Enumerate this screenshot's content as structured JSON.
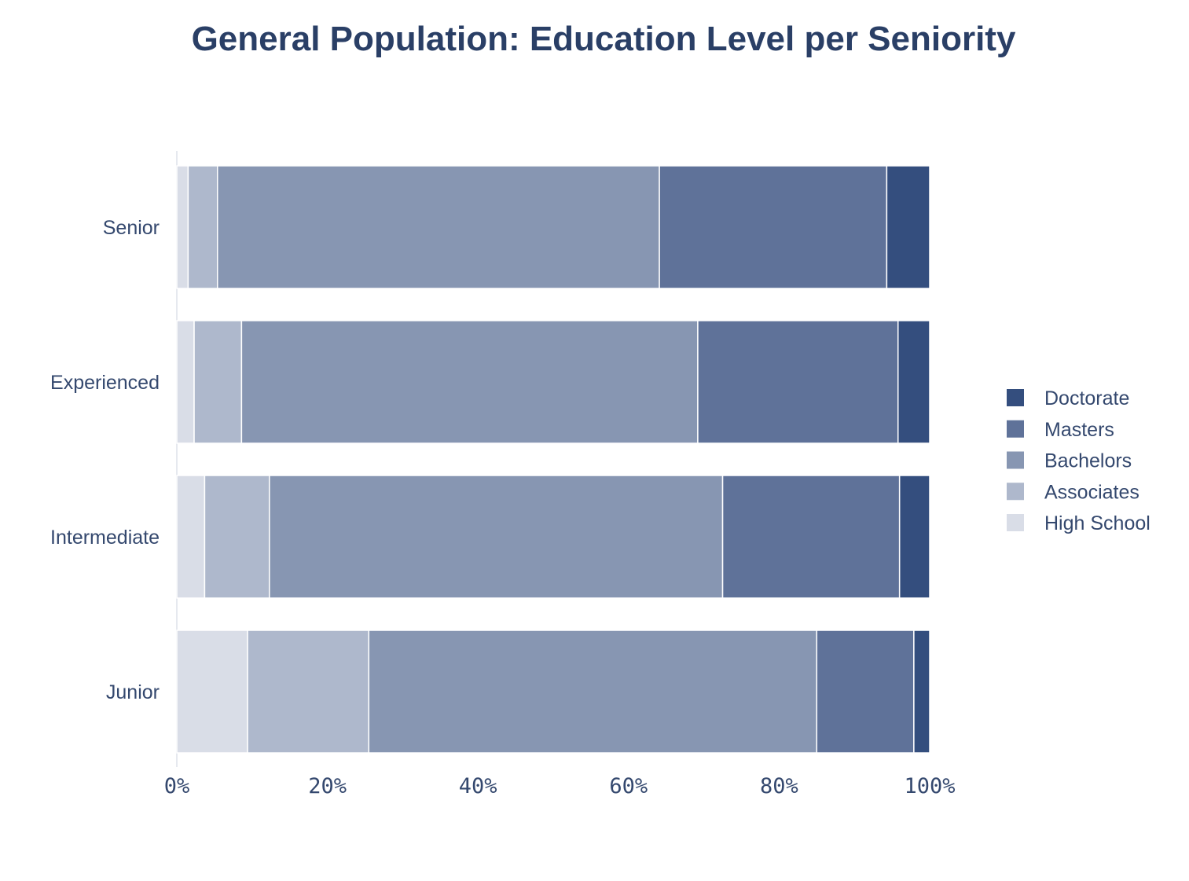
{
  "chart_data": {
    "type": "bar",
    "orientation": "horizontal",
    "stacked": "percent",
    "title": "General Population: Education Level per Seniority",
    "xlabel": "",
    "ylabel": "",
    "xlim": [
      0,
      100
    ],
    "x_ticks": [
      "0%",
      "20%",
      "40%",
      "60%",
      "80%",
      "100%"
    ],
    "grid": false,
    "legend_position": "right",
    "categories": [
      "Senior",
      "Experienced",
      "Intermediate",
      "Junior"
    ],
    "series": [
      {
        "name": "High School",
        "color": "#d9dde7",
        "values": [
          1.5,
          2.3,
          3.7,
          9.4
        ]
      },
      {
        "name": "Associates",
        "color": "#aeb8cc",
        "values": [
          3.9,
          6.3,
          8.6,
          16.1
        ]
      },
      {
        "name": "Bachelors",
        "color": "#8796b2",
        "values": [
          58.7,
          60.6,
          60.2,
          59.5
        ]
      },
      {
        "name": "Masters",
        "color": "#5f7299",
        "values": [
          30.2,
          26.6,
          23.5,
          12.9
        ]
      },
      {
        "name": "Doctorate",
        "color": "#344e7e",
        "values": [
          5.7,
          4.2,
          4.0,
          2.1
        ]
      }
    ],
    "legend_order": [
      "Doctorate",
      "Masters",
      "Bachelors",
      "Associates",
      "High School"
    ]
  },
  "colors": {
    "text": "#34486e",
    "title": "#2a3f66",
    "axis_line": "#e6e9ef",
    "bar_separator": "#ffffff"
  }
}
